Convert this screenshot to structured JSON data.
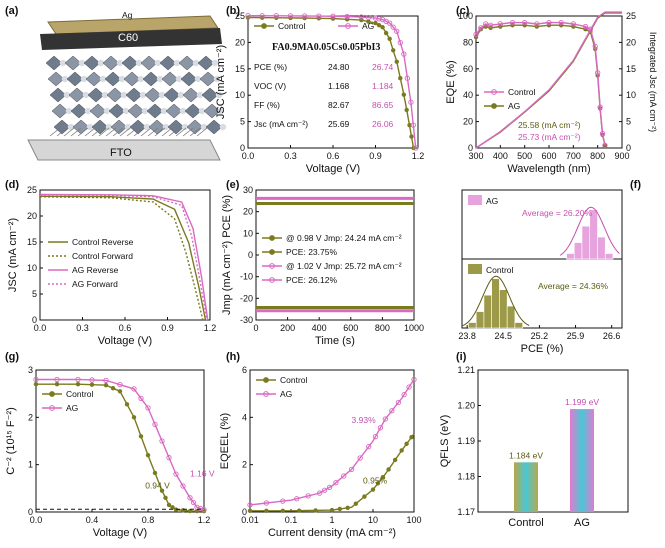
{
  "colors": {
    "control": "#7a7a1e",
    "ag": "#d969c2",
    "control_dark": "#5c5c12",
    "ag_dark": "#c64fb0"
  },
  "panels": {
    "a": {
      "tag": "(a)",
      "layer_top": "Ag",
      "layer_c60": "C60",
      "layer_bottom": "FTO"
    },
    "b": {
      "tag": "(b)",
      "xlabel": "Voltage (V)",
      "ylabel": "JSC (mA cm⁻²)",
      "legend": [
        "Control",
        "AG"
      ],
      "table_title": "FA0.9MA0.05Cs0.05PbI3",
      "table_rows": [
        {
          "name": "PCE (%)",
          "control": "24.80",
          "ag": "26.74"
        },
        {
          "name": "VOC (V)",
          "control": "1.168",
          "ag": "1.184"
        },
        {
          "name": "FF (%)",
          "control": "82.67",
          "ag": "86.65"
        },
        {
          "name": "Jsc (mA cm⁻²)",
          "control": "25.69",
          "ag": "26.06"
        }
      ]
    },
    "c": {
      "tag": "(c)",
      "xlabel": "Wavelength (nm)",
      "ylabel": "EQE (%)",
      "y2label": "Integrated Jsc (mA cm⁻²)",
      "legend": [
        "Control",
        "AG"
      ],
      "ann_control": "25.58 (mA cm⁻²)",
      "ann_ag": "25.73 (mA cm⁻²)"
    },
    "d": {
      "tag": "(d)",
      "xlabel": "Voltage (V)",
      "ylabel": "JSC (mA cm⁻²)",
      "legend": [
        "Control Reverse",
        "Control Forward",
        "AG Reverse",
        "AG Forward"
      ]
    },
    "e": {
      "tag": "(e)",
      "xlabel": "Time (s)",
      "ylabel": "Jmp (mA cm⁻²) PCE (%)",
      "legend": [
        "@ 0.98 V Jmp: 24.24 mA cm⁻²",
        "PCE: 23.75%",
        "@ 1.02 V Jmp: 25.72 mA cm⁻²",
        "PCE: 26.12%"
      ]
    },
    "f": {
      "tag": "(f)",
      "xlabel": "PCE (%)",
      "legend_ag": "AG",
      "legend_control": "Control",
      "avg_ag": "Average = 26.20%",
      "avg_control": "Average = 24.36%"
    },
    "g": {
      "tag": "(g)",
      "xlabel": "Voltage (V)",
      "ylabel": "C⁻² (10¹⁵ F⁻²)",
      "legend": [
        "Control",
        "AG"
      ],
      "ann_control": "0.94 V",
      "ann_ag": "1.16 V"
    },
    "h": {
      "tag": "(h)",
      "xlabel": "Current density (mA cm⁻²)",
      "ylabel": "EQEEL (%)",
      "legend": [
        "Control",
        "AG"
      ],
      "ann_control": "0.95%",
      "ann_ag": "3.93%"
    },
    "i": {
      "tag": "(i)",
      "ylabel": "QFLS (eV)",
      "label_control": "1.184 eV",
      "label_ag": "1.199 eV"
    }
  },
  "chart_data": [
    {
      "panel": "b",
      "type": "line",
      "xlim": [
        0,
        1.2
      ],
      "ylim": [
        0,
        26
      ],
      "xticks": [
        "0.0",
        "0.3",
        "0.6",
        "0.9",
        "1.2"
      ],
      "yticks": [
        "0",
        "5",
        "10",
        "15",
        "20",
        "25"
      ],
      "series": [
        {
          "name": "Control",
          "x": [
            0,
            0.2,
            0.4,
            0.6,
            0.8,
            0.9,
            0.95,
            1.0,
            1.05,
            1.1,
            1.14,
            1.168
          ],
          "y": [
            25.69,
            25.65,
            25.6,
            25.5,
            25.2,
            24.6,
            23.8,
            21.5,
            17.0,
            10.5,
            4.5,
            0
          ]
        },
        {
          "name": "AG",
          "x": [
            0,
            0.2,
            0.4,
            0.6,
            0.8,
            0.9,
            0.95,
            1.0,
            1.05,
            1.1,
            1.15,
            1.184
          ],
          "y": [
            26.06,
            26.04,
            26.0,
            25.95,
            25.8,
            25.6,
            25.3,
            24.6,
            23.0,
            18.5,
            9.0,
            0
          ]
        }
      ]
    },
    {
      "panel": "c",
      "type": "line",
      "xlim": [
        300,
        900
      ],
      "ylim": [
        0,
        100
      ],
      "y2lim": [
        0,
        25
      ],
      "xticks": [
        "300",
        "400",
        "500",
        "600",
        "700",
        "800",
        "900"
      ],
      "yticks": [
        "0",
        "20",
        "40",
        "60",
        "80",
        "100"
      ],
      "y2ticks": [
        "0",
        "5",
        "10",
        "15",
        "20",
        "25"
      ],
      "series": [
        {
          "name": "Control EQE",
          "x": [
            300,
            320,
            340,
            360,
            400,
            450,
            500,
            550,
            600,
            650,
            700,
            750,
            770,
            790,
            800,
            810,
            820,
            830
          ],
          "y": [
            84,
            90,
            92,
            91,
            92,
            93,
            93,
            92,
            93,
            93,
            92,
            90,
            88,
            75,
            55,
            30,
            10,
            2
          ]
        },
        {
          "name": "AG EQE",
          "x": [
            300,
            320,
            340,
            360,
            400,
            450,
            500,
            550,
            600,
            650,
            700,
            750,
            770,
            790,
            800,
            810,
            820,
            830
          ],
          "y": [
            86,
            91,
            94,
            93,
            94,
            95,
            95,
            94,
            95,
            95,
            94,
            92,
            90,
            77,
            57,
            31,
            11,
            2
          ]
        },
        {
          "name": "Control Integrated",
          "x": [
            300,
            400,
            500,
            600,
            700,
            800,
            830,
            900
          ],
          "y": [
            0,
            3.0,
            6.8,
            10.8,
            16.4,
            24.6,
            25.58,
            25.58
          ]
        },
        {
          "name": "AG Integrated",
          "x": [
            300,
            400,
            500,
            600,
            700,
            800,
            830,
            900
          ],
          "y": [
            0,
            3.1,
            6.9,
            11.0,
            16.6,
            24.8,
            25.73,
            25.73
          ]
        }
      ]
    },
    {
      "panel": "d",
      "type": "line",
      "xlim": [
        0,
        1.2
      ],
      "ylim": [
        0,
        27
      ],
      "xticks": [
        "0.0",
        "0.3",
        "0.6",
        "0.9",
        "1.2"
      ],
      "yticks": [
        "0",
        "5",
        "10",
        "15",
        "20",
        "25"
      ],
      "series": [
        {
          "name": "Control Reverse",
          "x": [
            0,
            0.5,
            0.8,
            0.95,
            1.05,
            1.12,
            1.168
          ],
          "y": [
            25.69,
            25.6,
            25.1,
            23.0,
            16.0,
            7.0,
            0
          ]
        },
        {
          "name": "Control Forward",
          "x": [
            0,
            0.5,
            0.8,
            0.95,
            1.03,
            1.1,
            1.15
          ],
          "y": [
            25.6,
            25.4,
            24.5,
            21.0,
            14.0,
            6.0,
            0
          ]
        },
        {
          "name": "AG Reverse",
          "x": [
            0,
            0.5,
            0.8,
            1.0,
            1.08,
            1.14,
            1.184
          ],
          "y": [
            26.06,
            26.0,
            25.8,
            24.5,
            19.0,
            9.0,
            0
          ]
        },
        {
          "name": "AG Forward",
          "x": [
            0,
            0.5,
            0.8,
            1.0,
            1.07,
            1.13,
            1.178
          ],
          "y": [
            26.0,
            25.9,
            25.6,
            23.8,
            17.5,
            8.0,
            0
          ]
        }
      ]
    },
    {
      "panel": "e",
      "type": "line",
      "xlim": [
        0,
        1000
      ],
      "ylim": [
        -30,
        30
      ],
      "xticks": [
        "0",
        "200",
        "400",
        "600",
        "800",
        "1000"
      ],
      "yticks": [
        "-30",
        "-20",
        "-10",
        "0",
        "10",
        "20",
        "30"
      ],
      "series": [
        {
          "name": "Control Jmp",
          "x": [
            0,
            1000
          ],
          "y": [
            -24.24,
            -24.24
          ]
        },
        {
          "name": "Control PCE",
          "x": [
            0,
            1000
          ],
          "y": [
            23.75,
            23.75
          ]
        },
        {
          "name": "AG Jmp",
          "x": [
            0,
            1000
          ],
          "y": [
            -25.72,
            -25.72
          ]
        },
        {
          "name": "AG PCE",
          "x": [
            0,
            1000
          ],
          "y": [
            26.12,
            26.12
          ]
        }
      ]
    },
    {
      "panel": "f",
      "type": "bar",
      "xlim": [
        23.7,
        26.8
      ],
      "xticks": [
        "23.8",
        "24.5",
        "25.2",
        "25.9",
        "26.6"
      ],
      "series": [
        {
          "name": "AG",
          "bins": [
            25.8,
            25.95,
            26.1,
            26.25,
            26.4,
            26.55
          ],
          "counts": [
            1,
            3,
            6,
            9,
            4,
            1
          ],
          "mean": 26.2
        },
        {
          "name": "Control",
          "bins": [
            23.9,
            24.05,
            24.2,
            24.35,
            24.5,
            24.65,
            24.8
          ],
          "counts": [
            1,
            3,
            6,
            9,
            7,
            4,
            1
          ],
          "mean": 24.36
        }
      ]
    },
    {
      "panel": "g",
      "type": "line",
      "xlim": [
        0,
        1.2
      ],
      "ylim": [
        0,
        3
      ],
      "xticks": [
        "0.0",
        "0.4",
        "0.8",
        "1.2"
      ],
      "yticks": [
        "0",
        "1",
        "2",
        "3"
      ],
      "series": [
        {
          "name": "Control",
          "x": [
            0,
            0.3,
            0.5,
            0.6,
            0.7,
            0.8,
            0.9,
            0.95,
            1.0,
            1.1,
            1.2
          ],
          "y": [
            2.7,
            2.7,
            2.68,
            2.55,
            2.0,
            1.2,
            0.45,
            0.15,
            0.05,
            0.02,
            0.02
          ]
        },
        {
          "name": "AG",
          "x": [
            0,
            0.3,
            0.5,
            0.7,
            0.8,
            0.9,
            1.0,
            1.1,
            1.15,
            1.2
          ],
          "y": [
            2.8,
            2.8,
            2.78,
            2.6,
            2.2,
            1.5,
            0.8,
            0.3,
            0.1,
            0.05
          ]
        }
      ]
    },
    {
      "panel": "h",
      "type": "line",
      "xscale": "log",
      "xlim": [
        0.01,
        100
      ],
      "ylim": [
        0,
        6
      ],
      "xticks": [
        "0.01",
        "0.1",
        "1",
        "10",
        "100"
      ],
      "yticks": [
        "0",
        "2",
        "4",
        "6"
      ],
      "series": [
        {
          "name": "Control",
          "x": [
            0.01,
            0.1,
            1,
            3,
            10,
            20,
            50,
            100
          ],
          "y": [
            0.05,
            0.05,
            0.08,
            0.2,
            0.95,
            1.6,
            2.6,
            3.3
          ]
        },
        {
          "name": "AG",
          "x": [
            0.01,
            0.1,
            0.5,
            1,
            3,
            10,
            20,
            50,
            100
          ],
          "y": [
            0.3,
            0.5,
            0.8,
            1.1,
            1.8,
            3.0,
            3.93,
            4.8,
            5.6
          ]
        }
      ]
    },
    {
      "panel": "i",
      "type": "bar",
      "ylim": [
        1.17,
        1.21
      ],
      "yticks": [
        "1.17",
        "1.18",
        "1.19",
        "1.20",
        "1.21"
      ],
      "categories": [
        "Control",
        "AG"
      ],
      "values": [
        1.184,
        1.199
      ]
    }
  ]
}
